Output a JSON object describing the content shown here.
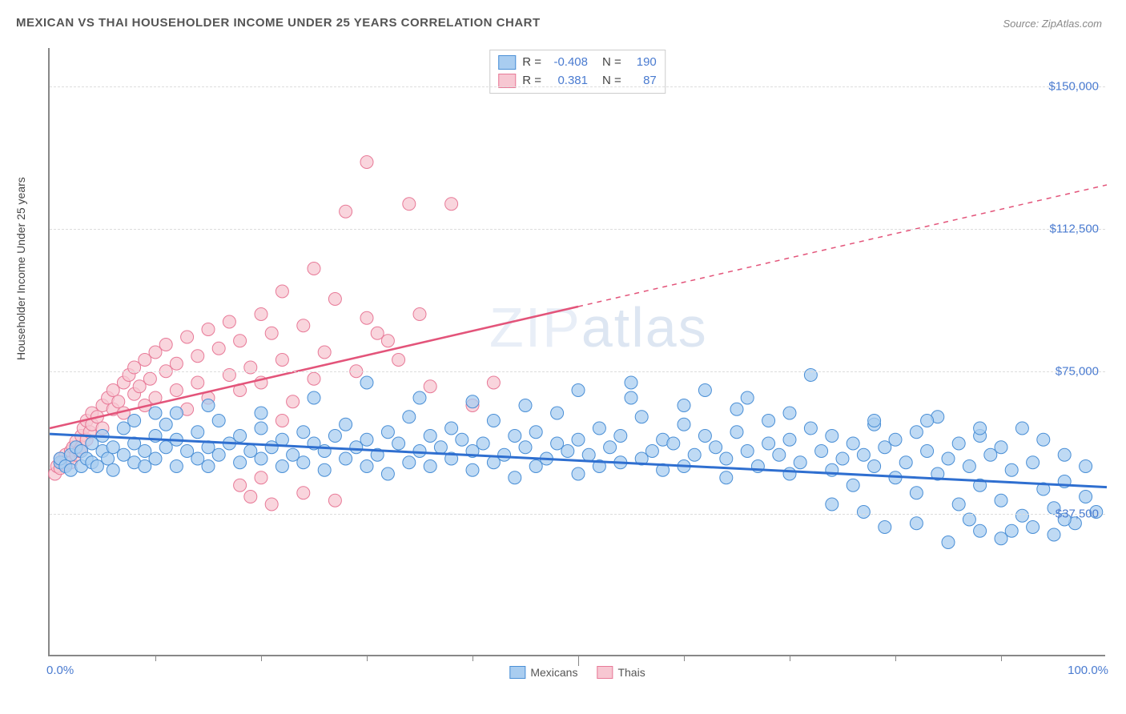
{
  "title": "MEXICAN VS THAI HOUSEHOLDER INCOME UNDER 25 YEARS CORRELATION CHART",
  "source": "Source: ZipAtlas.com",
  "ylabel": "Householder Income Under 25 years",
  "watermark_a": "ZIP",
  "watermark_b": "atlas",
  "chart": {
    "type": "scatter",
    "xlim": [
      0,
      100
    ],
    "ylim": [
      0,
      160000
    ],
    "x_tick_labels": {
      "left": "0.0%",
      "right": "100.0%"
    },
    "x_minor_ticks": [
      10,
      20,
      30,
      40,
      50,
      60,
      70,
      80,
      90
    ],
    "y_ticks": [
      {
        "v": 37500,
        "label": "$37,500"
      },
      {
        "v": 75000,
        "label": "$75,000"
      },
      {
        "v": 112500,
        "label": "$112,500"
      },
      {
        "v": 150000,
        "label": "$150,000"
      }
    ],
    "grid_color": "#dddddd",
    "series": {
      "mexicans": {
        "label": "Mexicans",
        "point_fill": "#a9cdf0",
        "point_stroke": "#4a8fd6",
        "line_color": "#2f6fd0",
        "r": -0.408,
        "n": 190,
        "trend": {
          "x1": 0,
          "y1": 58500,
          "x2": 100,
          "y2": 44500
        },
        "marker_r": 8
      },
      "thais": {
        "label": "Thais",
        "point_fill": "#f7c7d2",
        "point_stroke": "#e87a98",
        "line_color": "#e3547a",
        "r": 0.381,
        "n": 87,
        "trend_solid": {
          "x1": 0,
          "y1": 60000,
          "x2": 50,
          "y2": 92000
        },
        "trend_dash": {
          "x1": 50,
          "y1": 92000,
          "x2": 100,
          "y2": 124000
        },
        "marker_r": 8
      }
    },
    "stats_box": {
      "rows": [
        {
          "swatch_fill": "#a9cdf0",
          "swatch_stroke": "#4a8fd6",
          "r": "-0.408",
          "n": "190"
        },
        {
          "swatch_fill": "#f7c7d2",
          "swatch_stroke": "#e87a98",
          "r": "0.381",
          "n": "87"
        }
      ]
    },
    "bottom_legend": [
      {
        "swatch_fill": "#a9cdf0",
        "swatch_stroke": "#4a8fd6",
        "label": "Mexicans"
      },
      {
        "swatch_fill": "#f7c7d2",
        "swatch_stroke": "#e87a98",
        "label": "Thais"
      }
    ],
    "mexicans_points": [
      [
        1,
        51000
      ],
      [
        1,
        52000
      ],
      [
        1.5,
        50000
      ],
      [
        2,
        53000
      ],
      [
        2,
        49000
      ],
      [
        2.5,
        55000
      ],
      [
        3,
        50000
      ],
      [
        3,
        54000
      ],
      [
        3.5,
        52000
      ],
      [
        4,
        51000
      ],
      [
        4,
        56000
      ],
      [
        4.5,
        50000
      ],
      [
        5,
        54000
      ],
      [
        5,
        58000
      ],
      [
        5.5,
        52000
      ],
      [
        6,
        49000
      ],
      [
        6,
        55000
      ],
      [
        7,
        53000
      ],
      [
        7,
        60000
      ],
      [
        8,
        51000
      ],
      [
        8,
        56000
      ],
      [
        9,
        54000
      ],
      [
        9,
        50000
      ],
      [
        10,
        58000
      ],
      [
        10,
        52000
      ],
      [
        11,
        55000
      ],
      [
        11,
        61000
      ],
      [
        12,
        50000
      ],
      [
        12,
        57000
      ],
      [
        13,
        54000
      ],
      [
        14,
        52000
      ],
      [
        14,
        59000
      ],
      [
        15,
        55000
      ],
      [
        15,
        50000
      ],
      [
        16,
        53000
      ],
      [
        16,
        62000
      ],
      [
        17,
        56000
      ],
      [
        18,
        51000
      ],
      [
        18,
        58000
      ],
      [
        19,
        54000
      ],
      [
        20,
        52000
      ],
      [
        20,
        60000
      ],
      [
        21,
        55000
      ],
      [
        22,
        50000
      ],
      [
        22,
        57000
      ],
      [
        23,
        53000
      ],
      [
        24,
        59000
      ],
      [
        24,
        51000
      ],
      [
        25,
        56000
      ],
      [
        26,
        54000
      ],
      [
        26,
        49000
      ],
      [
        27,
        58000
      ],
      [
        28,
        52000
      ],
      [
        28,
        61000
      ],
      [
        29,
        55000
      ],
      [
        30,
        50000
      ],
      [
        30,
        57000
      ],
      [
        31,
        53000
      ],
      [
        32,
        59000
      ],
      [
        32,
        48000
      ],
      [
        33,
        56000
      ],
      [
        34,
        51000
      ],
      [
        34,
        63000
      ],
      [
        35,
        54000
      ],
      [
        36,
        58000
      ],
      [
        36,
        50000
      ],
      [
        37,
        55000
      ],
      [
        38,
        52000
      ],
      [
        38,
        60000
      ],
      [
        39,
        57000
      ],
      [
        40,
        49000
      ],
      [
        40,
        54000
      ],
      [
        41,
        56000
      ],
      [
        42,
        51000
      ],
      [
        42,
        62000
      ],
      [
        43,
        53000
      ],
      [
        44,
        58000
      ],
      [
        44,
        47000
      ],
      [
        45,
        55000
      ],
      [
        46,
        50000
      ],
      [
        46,
        59000
      ],
      [
        47,
        52000
      ],
      [
        48,
        56000
      ],
      [
        48,
        64000
      ],
      [
        49,
        54000
      ],
      [
        50,
        48000
      ],
      [
        50,
        57000
      ],
      [
        51,
        53000
      ],
      [
        52,
        60000
      ],
      [
        52,
        50000
      ],
      [
        53,
        55000
      ],
      [
        54,
        51000
      ],
      [
        54,
        58000
      ],
      [
        55,
        72000
      ],
      [
        56,
        52000
      ],
      [
        56,
        63000
      ],
      [
        57,
        54000
      ],
      [
        58,
        49000
      ],
      [
        58,
        57000
      ],
      [
        59,
        56000
      ],
      [
        60,
        50000
      ],
      [
        60,
        61000
      ],
      [
        61,
        53000
      ],
      [
        62,
        58000
      ],
      [
        62,
        70000
      ],
      [
        63,
        55000
      ],
      [
        64,
        47000
      ],
      [
        64,
        52000
      ],
      [
        65,
        59000
      ],
      [
        66,
        54000
      ],
      [
        66,
        68000
      ],
      [
        67,
        50000
      ],
      [
        68,
        56000
      ],
      [
        68,
        62000
      ],
      [
        69,
        53000
      ],
      [
        70,
        48000
      ],
      [
        70,
        57000
      ],
      [
        71,
        51000
      ],
      [
        72,
        60000
      ],
      [
        72,
        74000
      ],
      [
        73,
        54000
      ],
      [
        74,
        49000
      ],
      [
        74,
        58000
      ],
      [
        75,
        52000
      ],
      [
        76,
        56000
      ],
      [
        76,
        45000
      ],
      [
        77,
        53000
      ],
      [
        78,
        61000
      ],
      [
        78,
        50000
      ],
      [
        79,
        55000
      ],
      [
        80,
        47000
      ],
      [
        80,
        57000
      ],
      [
        81,
        51000
      ],
      [
        82,
        59000
      ],
      [
        82,
        43000
      ],
      [
        83,
        54000
      ],
      [
        84,
        48000
      ],
      [
        84,
        63000
      ],
      [
        85,
        52000
      ],
      [
        86,
        56000
      ],
      [
        86,
        40000
      ],
      [
        87,
        50000
      ],
      [
        88,
        58000
      ],
      [
        88,
        45000
      ],
      [
        89,
        53000
      ],
      [
        90,
        41000
      ],
      [
        90,
        55000
      ],
      [
        91,
        49000
      ],
      [
        92,
        60000
      ],
      [
        92,
        37000
      ],
      [
        93,
        51000
      ],
      [
        94,
        44000
      ],
      [
        94,
        57000
      ],
      [
        95,
        39000
      ],
      [
        96,
        53000
      ],
      [
        96,
        46000
      ],
      [
        97,
        35000
      ],
      [
        98,
        50000
      ],
      [
        98,
        42000
      ],
      [
        99,
        38000
      ],
      [
        85,
        30000
      ],
      [
        88,
        33000
      ],
      [
        90,
        31000
      ],
      [
        93,
        34000
      ],
      [
        87,
        36000
      ],
      [
        82,
        35000
      ],
      [
        95,
        32000
      ],
      [
        79,
        34000
      ],
      [
        91,
        33000
      ],
      [
        96,
        36000
      ],
      [
        60,
        66000
      ],
      [
        55,
        68000
      ],
      [
        50,
        70000
      ],
      [
        65,
        65000
      ],
      [
        70,
        64000
      ],
      [
        45,
        66000
      ],
      [
        40,
        67000
      ],
      [
        35,
        68000
      ],
      [
        30,
        72000
      ],
      [
        25,
        68000
      ],
      [
        20,
        64000
      ],
      [
        15,
        66000
      ],
      [
        10,
        64000
      ],
      [
        8,
        62000
      ],
      [
        12,
        64000
      ],
      [
        78,
        62000
      ],
      [
        83,
        62000
      ],
      [
        88,
        60000
      ],
      [
        74,
        40000
      ],
      [
        77,
        38000
      ]
    ],
    "thais_points": [
      [
        0.5,
        48000
      ],
      [
        0.7,
        50000
      ],
      [
        1,
        49500
      ],
      [
        1,
        52000
      ],
      [
        1.2,
        51000
      ],
      [
        1.5,
        50500
      ],
      [
        1.5,
        53000
      ],
      [
        1.8,
        52000
      ],
      [
        2,
        54000
      ],
      [
        2,
        51000
      ],
      [
        2.2,
        55000
      ],
      [
        2.5,
        53000
      ],
      [
        2.5,
        56500
      ],
      [
        2.8,
        54000
      ],
      [
        3,
        58000
      ],
      [
        3,
        55000
      ],
      [
        3.2,
        60000
      ],
      [
        3.5,
        57000
      ],
      [
        3.5,
        62000
      ],
      [
        3.8,
        59000
      ],
      [
        4,
        64000
      ],
      [
        4,
        61000
      ],
      [
        4.5,
        63000
      ],
      [
        5,
        66000
      ],
      [
        5,
        60000
      ],
      [
        5.5,
        68000
      ],
      [
        6,
        65000
      ],
      [
        6,
        70000
      ],
      [
        6.5,
        67000
      ],
      [
        7,
        72000
      ],
      [
        7,
        64000
      ],
      [
        7.5,
        74000
      ],
      [
        8,
        69000
      ],
      [
        8,
        76000
      ],
      [
        8.5,
        71000
      ],
      [
        9,
        78000
      ],
      [
        9,
        66000
      ],
      [
        9.5,
        73000
      ],
      [
        10,
        80000
      ],
      [
        10,
        68000
      ],
      [
        11,
        75000
      ],
      [
        11,
        82000
      ],
      [
        12,
        70000
      ],
      [
        12,
        77000
      ],
      [
        13,
        84000
      ],
      [
        13,
        65000
      ],
      [
        14,
        79000
      ],
      [
        14,
        72000
      ],
      [
        15,
        86000
      ],
      [
        15,
        68000
      ],
      [
        16,
        81000
      ],
      [
        17,
        74000
      ],
      [
        17,
        88000
      ],
      [
        18,
        70000
      ],
      [
        18,
        83000
      ],
      [
        19,
        76000
      ],
      [
        20,
        90000
      ],
      [
        20,
        72000
      ],
      [
        21,
        85000
      ],
      [
        22,
        78000
      ],
      [
        22,
        96000
      ],
      [
        23,
        67000
      ],
      [
        24,
        87000
      ],
      [
        25,
        73000
      ],
      [
        25,
        102000
      ],
      [
        26,
        80000
      ],
      [
        27,
        94000
      ],
      [
        28,
        117000
      ],
      [
        29,
        75000
      ],
      [
        30,
        89000
      ],
      [
        19,
        42000
      ],
      [
        18,
        45000
      ],
      [
        21,
        40000
      ],
      [
        24,
        43000
      ],
      [
        27,
        41000
      ],
      [
        20,
        47000
      ],
      [
        22,
        62000
      ],
      [
        31,
        85000
      ],
      [
        33,
        78000
      ],
      [
        35,
        90000
      ],
      [
        30,
        130000
      ],
      [
        34,
        119000
      ],
      [
        38,
        119000
      ],
      [
        32,
        83000
      ],
      [
        36,
        71000
      ],
      [
        40,
        66000
      ],
      [
        42,
        72000
      ]
    ]
  }
}
